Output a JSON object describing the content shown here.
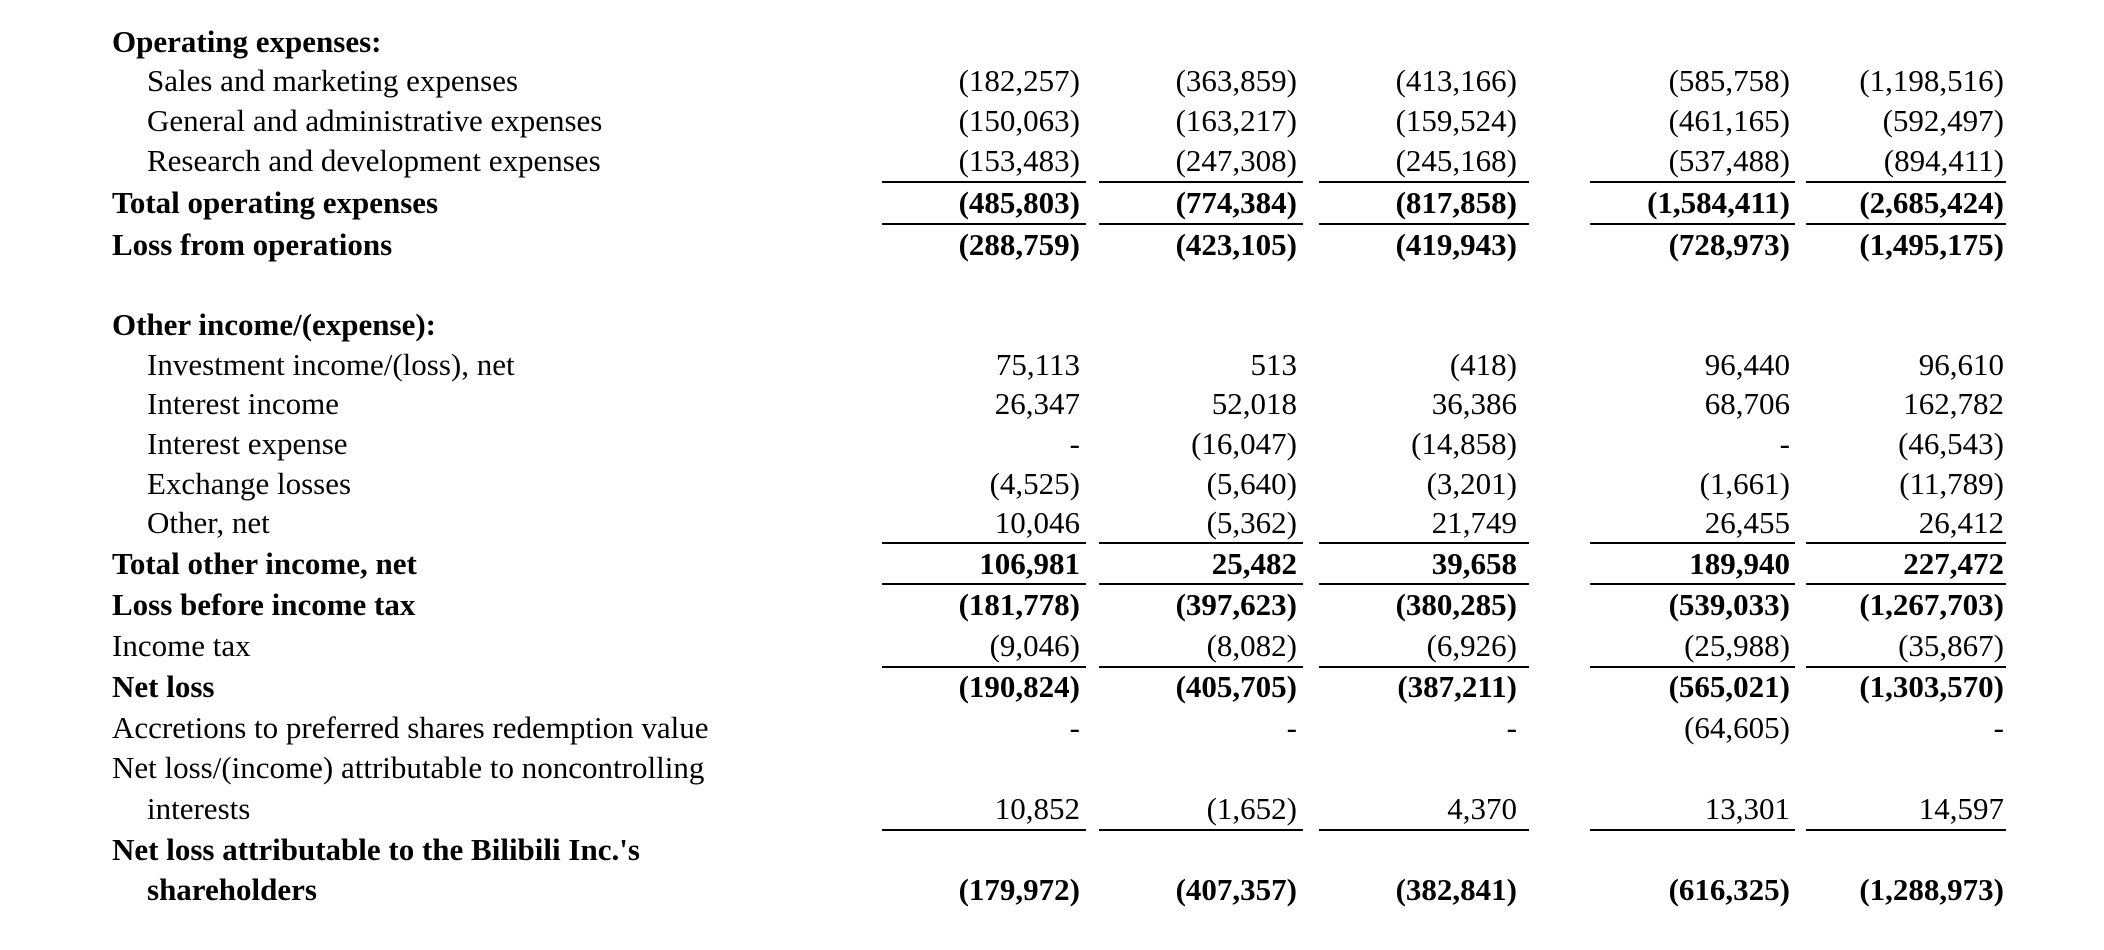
{
  "rows": [
    {
      "label": "Operating expenses:",
      "values": [
        "",
        "",
        "",
        "",
        ""
      ]
    },
    {
      "label": "Sales and marketing expenses",
      "values": [
        "(182,257)",
        "(363,859)",
        "(413,166)",
        "(585,758)",
        "(1,198,516)"
      ]
    },
    {
      "label": "General and administrative expenses",
      "values": [
        "(150,063)",
        "(163,217)",
        "(159,524)",
        "(461,165)",
        "(592,497)"
      ]
    },
    {
      "label": "Research and development expenses",
      "values": [
        "(153,483)",
        "(247,308)",
        "(245,168)",
        "(537,488)",
        "(894,411)"
      ]
    },
    {
      "label": "Total operating expenses",
      "values": [
        "(485,803)",
        "(774,384)",
        "(817,858)",
        "(1,584,411)",
        "(2,685,424)"
      ]
    },
    {
      "label": "Loss from operations",
      "values": [
        "(288,759)",
        "(423,105)",
        "(419,943)",
        "(728,973)",
        "(1,495,175)"
      ]
    },
    {
      "label": "Other income/(expense):",
      "values": [
        "",
        "",
        "",
        "",
        ""
      ]
    },
    {
      "label": "Investment income/(loss), net",
      "values": [
        "75,113",
        "513",
        "(418)",
        "96,440",
        "96,610"
      ]
    },
    {
      "label": "Interest income",
      "values": [
        "26,347",
        "52,018",
        "36,386",
        "68,706",
        "162,782"
      ]
    },
    {
      "label": "Interest expense",
      "values": [
        "-",
        "(16,047)",
        "(14,858)",
        "-",
        "(46,543)"
      ]
    },
    {
      "label": "Exchange losses",
      "values": [
        "(4,525)",
        "(5,640)",
        "(3,201)",
        "(1,661)",
        "(11,789)"
      ]
    },
    {
      "label": "Other, net",
      "values": [
        "10,046",
        "(5,362)",
        "21,749",
        "26,455",
        "26,412"
      ]
    },
    {
      "label": "Total other income, net",
      "values": [
        "106,981",
        "25,482",
        "39,658",
        "189,940",
        "227,472"
      ]
    },
    {
      "label": "Loss before income tax",
      "values": [
        "(181,778)",
        "(397,623)",
        "(380,285)",
        "(539,033)",
        "(1,267,703)"
      ]
    },
    {
      "label": "Income tax",
      "values": [
        "(9,046)",
        "(8,082)",
        "(6,926)",
        "(25,988)",
        "(35,867)"
      ]
    },
    {
      "label": "Net loss",
      "values": [
        "(190,824)",
        "(405,705)",
        "(387,211)",
        "(565,021)",
        "(1,303,570)"
      ]
    },
    {
      "label": "Accretions to preferred shares redemption value",
      "values": [
        "-",
        "-",
        "-",
        "(64,605)",
        "-"
      ]
    },
    {
      "label": "Net loss/(income) attributable to noncontrolling",
      "values": [
        "",
        "",
        "",
        "",
        ""
      ]
    },
    {
      "label": "interests",
      "values": [
        "10,852",
        "(1,652)",
        "4,370",
        "13,301",
        "14,597"
      ]
    },
    {
      "label": "Net loss attributable to the Bilibili Inc.'s",
      "values": [
        "",
        "",
        "",
        "",
        ""
      ]
    },
    {
      "label": "shareholders",
      "values": [
        "(179,972)",
        "(407,357)",
        "(382,841)",
        "(616,325)",
        "(1,288,973)"
      ]
    }
  ]
}
